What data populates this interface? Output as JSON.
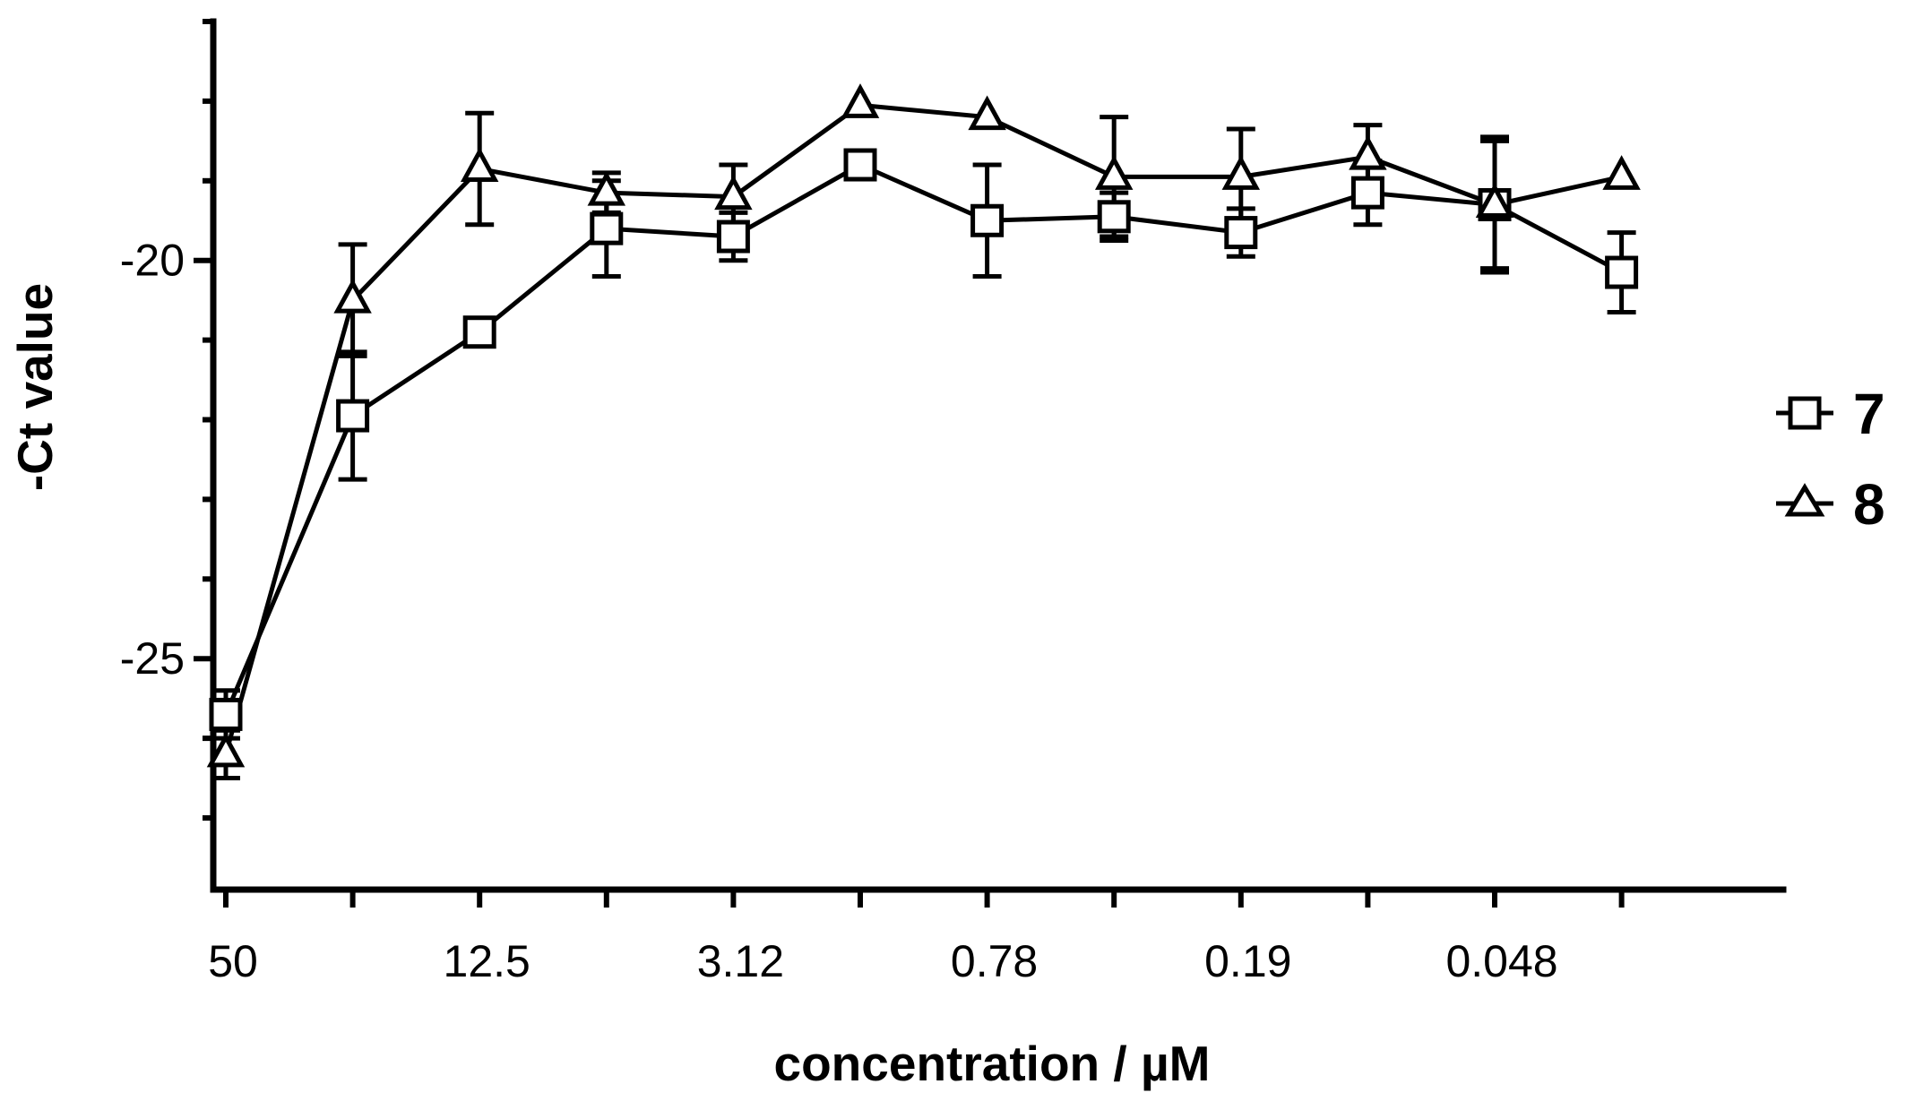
{
  "chart_data": {
    "type": "line",
    "title": "",
    "xlabel": "concentration / µM",
    "ylabel": "-Ct value",
    "x_tick_labels": [
      "50",
      "12.5",
      "3.12",
      "0.78",
      "0.19",
      "0.048"
    ],
    "x_positions": [
      "50",
      "25",
      "12.5",
      "6.25",
      "3.12",
      "1.56",
      "0.78",
      "0.39",
      "0.19",
      "0.098",
      "0.048",
      "0.024"
    ],
    "x_ticks_labeled_every": 2,
    "y_tick_labels": [
      "-20",
      "-25"
    ],
    "y_ticks": [
      -20,
      -25
    ],
    "ylim": [
      -27.9,
      -17.0
    ],
    "y_minor_step": 1,
    "grid": false,
    "legend_position": "right",
    "series": [
      {
        "name": "7",
        "marker": "square",
        "values": [
          -25.7,
          -21.95,
          -20.9,
          -19.6,
          -19.7,
          -18.8,
          -19.5,
          -19.45,
          -19.65,
          -19.15,
          -19.3,
          -20.15
        ],
        "errors": [
          0.3,
          0.8,
          0.0,
          0.6,
          0.3,
          0.0,
          0.7,
          0.3,
          0.3,
          0.4,
          0.8,
          0.5
        ]
      },
      {
        "name": "8",
        "marker": "triangle",
        "values": [
          -26.2,
          -20.5,
          -18.85,
          -19.15,
          -19.2,
          -18.05,
          -18.2,
          -18.95,
          -18.95,
          -18.7,
          -19.3,
          -18.95
        ],
        "errors": [
          0.3,
          0.7,
          0.7,
          0.25,
          0.4,
          0.0,
          0.0,
          0.75,
          0.6,
          0.4,
          0.85,
          0.0
        ]
      }
    ]
  }
}
